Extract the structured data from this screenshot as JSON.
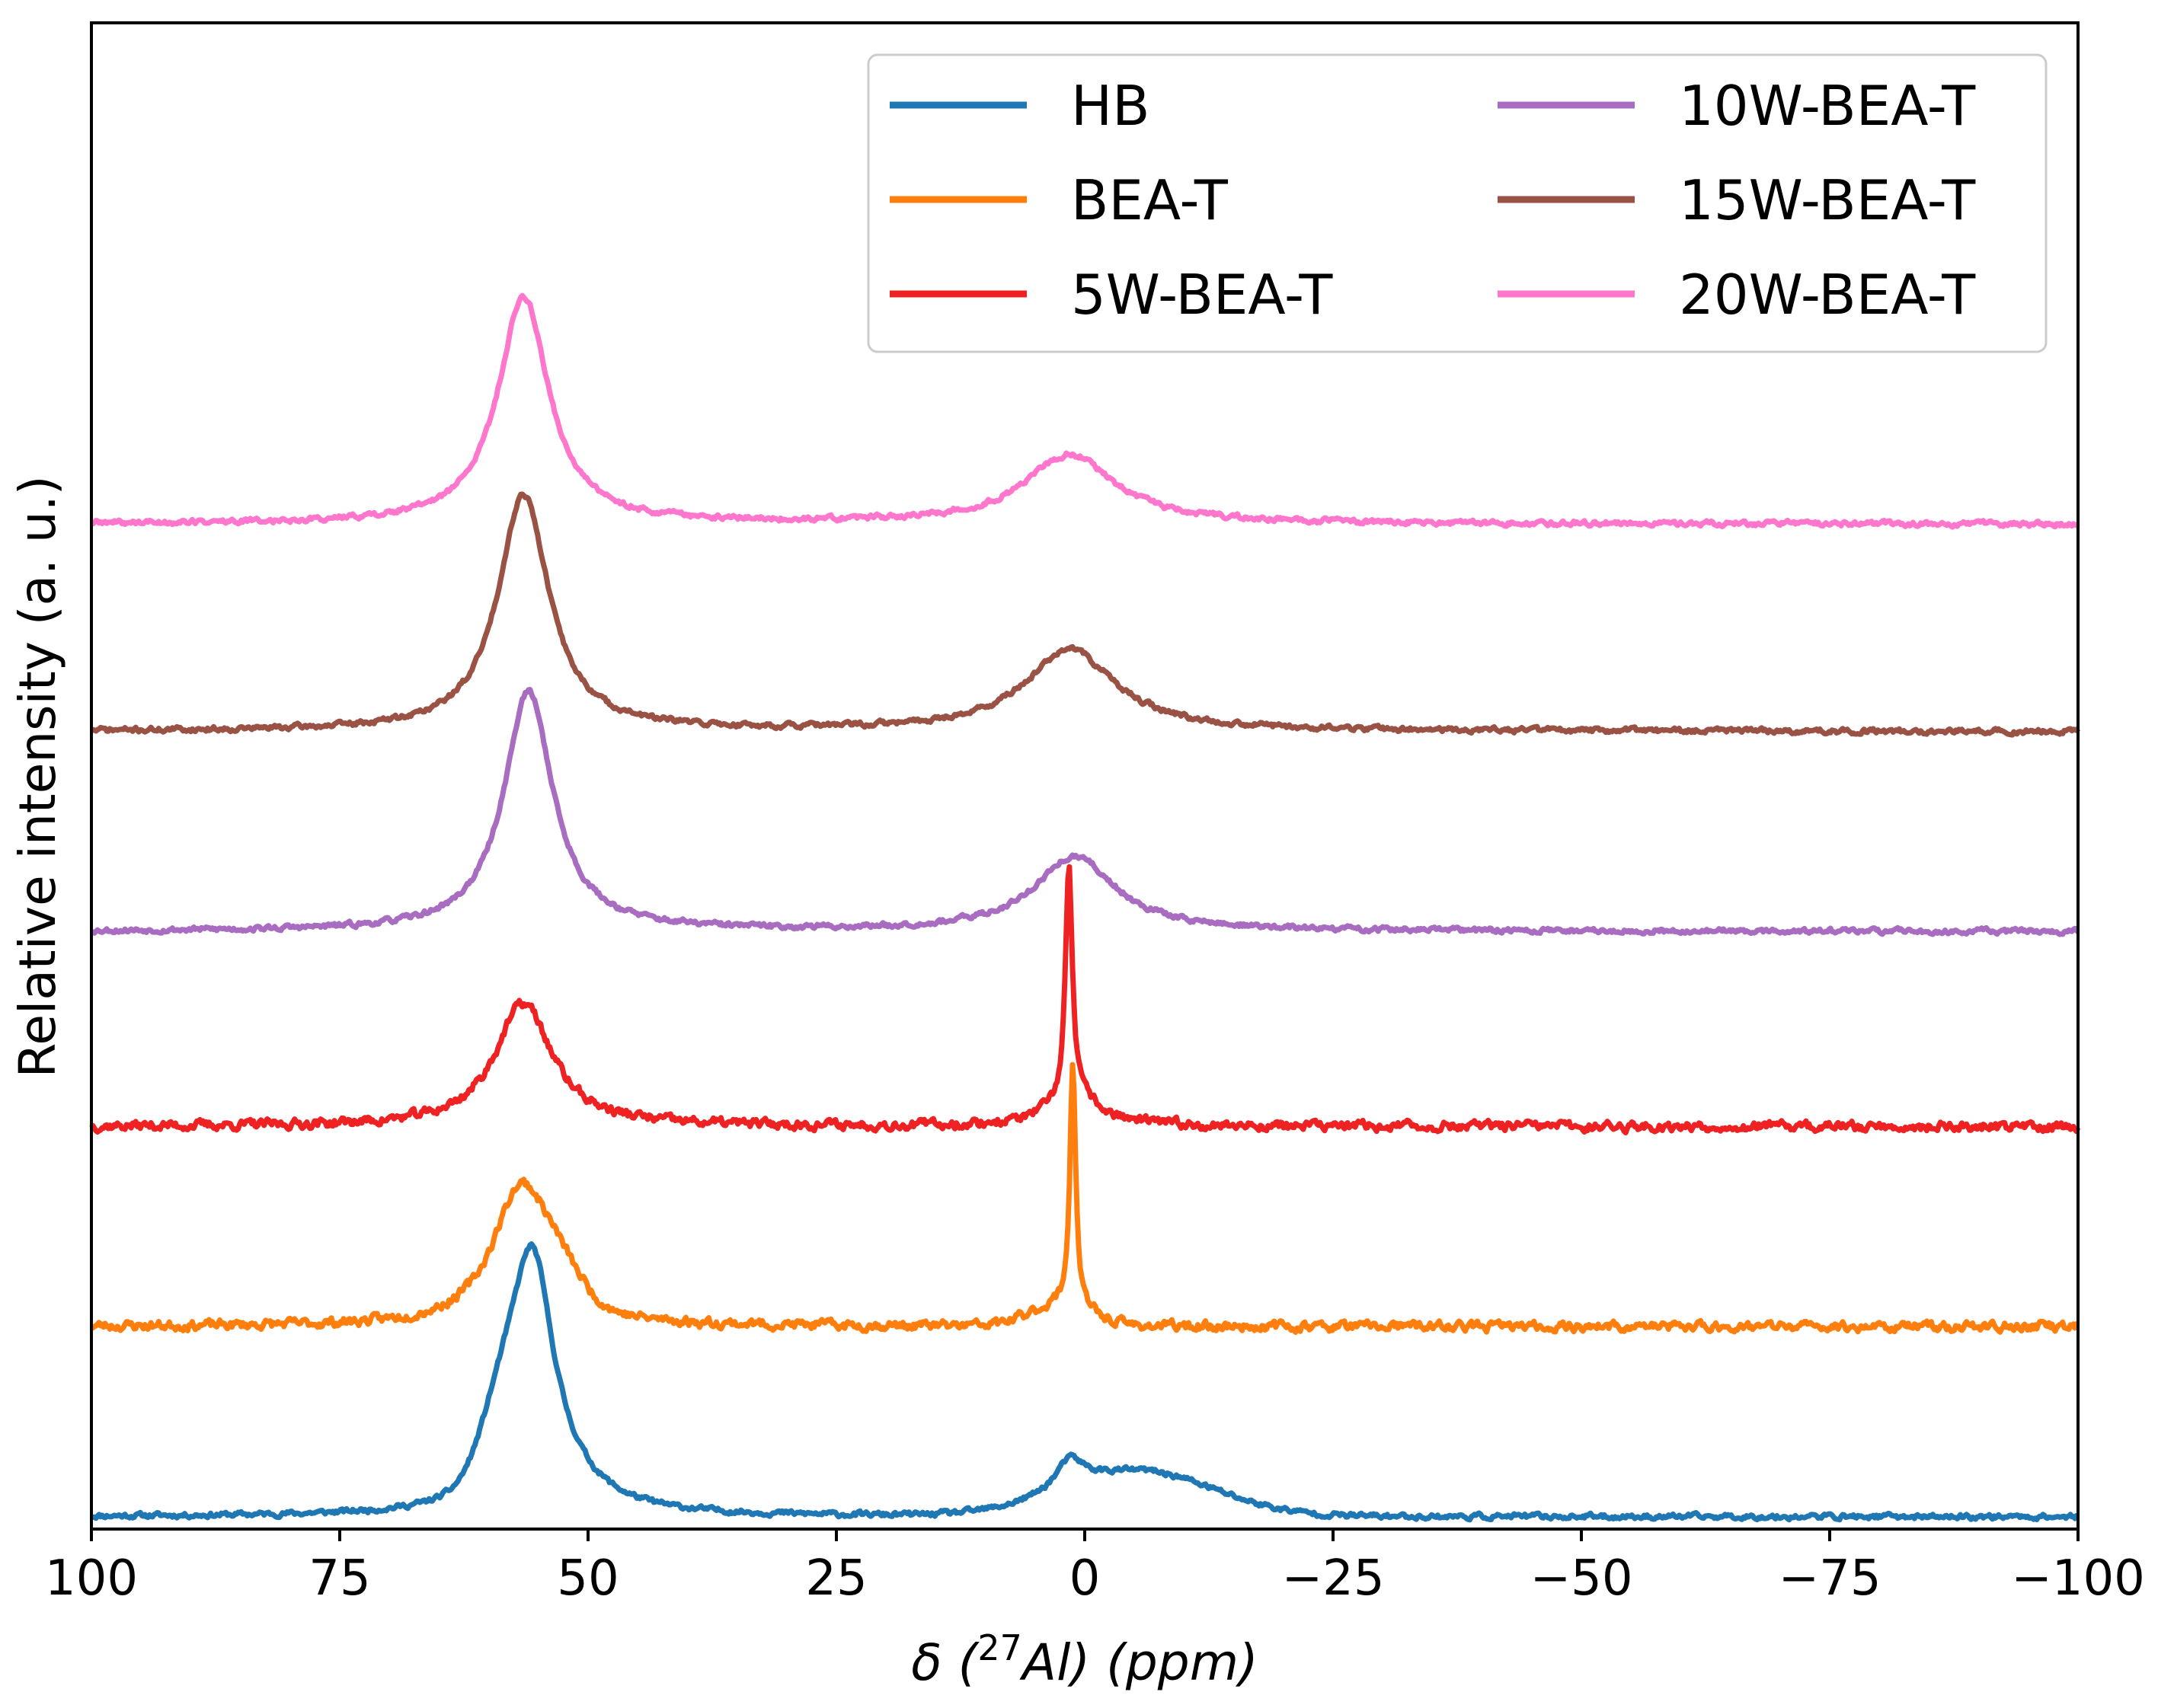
{
  "chart_data": {
    "type": "line",
    "title": "",
    "xlabel": {
      "prefix": "δ (",
      "sup": "27",
      "element": "Al",
      "suffix": ") (ppm)"
    },
    "ylabel": "Relative intensity (a. u.)",
    "xlim": [
      100,
      -100
    ],
    "ylim": [
      0,
      6.1
    ],
    "xticks": [
      100,
      75,
      50,
      25,
      0,
      -25,
      -50,
      -75,
      -100
    ],
    "xtick_labels": [
      "100",
      "75",
      "50",
      "25",
      "0",
      "−25",
      "−50",
      "−75",
      "−100"
    ],
    "yticks": [],
    "legend_position": "top-right",
    "legend_columns": 2,
    "series": [
      {
        "name": "HB",
        "color": "#1f77b4",
        "baseline": 0.05,
        "noise": 0.012,
        "seed": 11,
        "peaks": [
          {
            "center": 55.5,
            "height": 0.9,
            "width": 2.6,
            "shape": "lorentzian"
          },
          {
            "center": 58.5,
            "height": 0.28,
            "width": 2.2,
            "shape": "gaussian"
          },
          {
            "center": 53.0,
            "height": 0.1,
            "width": 5.0,
            "shape": "lorentzian"
          },
          {
            "center": 1.5,
            "height": 0.12,
            "width": 1.8,
            "shape": "lorentzian"
          },
          {
            "center": -5.5,
            "height": 0.18,
            "width": 7.5,
            "shape": "gaussian"
          }
        ]
      },
      {
        "name": "BEA-T",
        "color": "#ff7f0e",
        "baseline": 0.82,
        "noise": 0.022,
        "seed": 23,
        "peaks": [
          {
            "center": 57.0,
            "height": 0.52,
            "width": 3.5,
            "shape": "lorentzian"
          },
          {
            "center": 53.5,
            "height": 0.15,
            "width": 2.5,
            "shape": "gaussian"
          },
          {
            "center": 1.2,
            "height": 1.0,
            "width": 0.35,
            "shape": "lorentzian"
          },
          {
            "center": 2.5,
            "height": 0.08,
            "width": 3.0,
            "shape": "gaussian"
          }
        ]
      },
      {
        "name": "5W-BEA-T",
        "color": "#ee2222",
        "baseline": 1.63,
        "noise": 0.022,
        "seed": 37,
        "peaks": [
          {
            "center": 56.5,
            "height": 0.5,
            "width": 3.5,
            "shape": "lorentzian"
          },
          {
            "center": 1.6,
            "height": 0.95,
            "width": 0.4,
            "shape": "lorentzian"
          },
          {
            "center": 1.0,
            "height": 0.12,
            "width": 3.0,
            "shape": "lorentzian"
          }
        ]
      },
      {
        "name": "10W-BEA-T",
        "color": "#a86cc1",
        "baseline": 2.42,
        "noise": 0.012,
        "seed": 53,
        "peaks": [
          {
            "center": 56.0,
            "height": 0.97,
            "width": 3.0,
            "shape": "lorentzian"
          },
          {
            "center": 1.0,
            "height": 0.3,
            "width": 5.0,
            "shape": "lorentzian"
          }
        ]
      },
      {
        "name": "15W-BEA-T",
        "color": "#9a5245",
        "baseline": 3.23,
        "noise": 0.012,
        "seed": 71,
        "peaks": [
          {
            "center": 56.5,
            "height": 0.96,
            "width": 3.1,
            "shape": "lorentzian"
          },
          {
            "center": 1.5,
            "height": 0.33,
            "width": 5.5,
            "shape": "lorentzian"
          }
        ]
      },
      {
        "name": "20W-BEA-T",
        "color": "#ff77cc",
        "baseline": 4.07,
        "noise": 0.012,
        "seed": 89,
        "peaks": [
          {
            "center": 56.5,
            "height": 0.92,
            "width": 3.1,
            "shape": "lorentzian"
          },
          {
            "center": 1.5,
            "height": 0.28,
            "width": 5.5,
            "shape": "lorentzian"
          }
        ]
      }
    ]
  }
}
